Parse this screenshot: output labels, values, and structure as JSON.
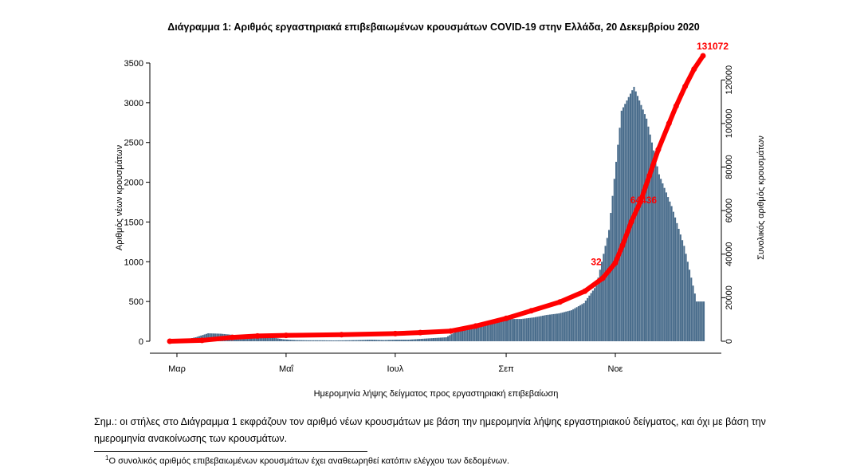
{
  "chart_data": {
    "type": "bar",
    "title": "Διάγραμμα 1: Αριθμός εργαστηριακά επιβεβαιωμένων κρουσμάτων COVID-19 στην Ελλάδα, 20 Δεκεμβρίου 2020",
    "xlabel": "Ημερομηνία λήψης δείγματος προς εργαστηριακή επιβεβαίωση",
    "ylabel": "Αριθμός νέων κρουσμάτων",
    "y2label": "Συνολικός αριθμός κρουσμάτων",
    "x_tick_labels": [
      "Μαρ",
      "Μαΐ",
      "Ιουλ",
      "Σεπ",
      "Νοε"
    ],
    "x_tick_dates": [
      "2020-03-01",
      "2020-05-01",
      "2020-07-01",
      "2020-09-01",
      "2020-11-01"
    ],
    "x_range": [
      "2020-02-26",
      "2020-12-20"
    ],
    "ylim": [
      0,
      3500
    ],
    "yticks": [
      0,
      500,
      1000,
      1500,
      2000,
      2500,
      3000,
      3500
    ],
    "y2lim": [
      0,
      120000
    ],
    "y2ticks": [
      0,
      20000,
      40000,
      60000,
      80000,
      100000,
      120000
    ],
    "bar_color": "#4a6d8c",
    "line_color": "#ff0000",
    "series": [
      {
        "name": "Αριθμός νέων κρουσμάτων",
        "kind": "bar",
        "x_weekly": [
          "2020-02-26",
          "2020-03-04",
          "2020-03-11",
          "2020-03-18",
          "2020-03-25",
          "2020-04-01",
          "2020-04-08",
          "2020-04-15",
          "2020-04-22",
          "2020-04-29",
          "2020-05-06",
          "2020-05-13",
          "2020-05-20",
          "2020-05-27",
          "2020-06-03",
          "2020-06-10",
          "2020-06-17",
          "2020-06-24",
          "2020-07-01",
          "2020-07-08",
          "2020-07-15",
          "2020-07-22",
          "2020-07-29",
          "2020-08-05",
          "2020-08-12",
          "2020-08-19",
          "2020-08-26",
          "2020-09-02",
          "2020-09-09",
          "2020-09-16",
          "2020-09-23",
          "2020-09-30",
          "2020-10-07",
          "2020-10-14",
          "2020-10-21",
          "2020-10-28",
          "2020-11-04",
          "2020-11-11",
          "2020-11-18",
          "2020-11-25",
          "2020-12-02",
          "2020-12-09",
          "2020-12-16"
        ],
        "values": [
          2,
          15,
          50,
          100,
          95,
          80,
          70,
          60,
          50,
          25,
          15,
          12,
          12,
          10,
          12,
          15,
          20,
          15,
          20,
          20,
          30,
          40,
          50,
          140,
          200,
          220,
          250,
          280,
          280,
          300,
          330,
          350,
          390,
          480,
          700,
          1400,
          2900,
          3200,
          2800,
          2100,
          1700,
          1200,
          500
        ]
      },
      {
        "name": "Συνολικός αριθμός κρουσμάτων",
        "kind": "line",
        "x": [
          "2020-02-26",
          "2020-03-15",
          "2020-04-01",
          "2020-04-15",
          "2020-05-01",
          "2020-06-01",
          "2020-07-01",
          "2020-07-15",
          "2020-08-01",
          "2020-08-15",
          "2020-09-01",
          "2020-09-15",
          "2020-10-01",
          "2020-10-15",
          "2020-10-25",
          "2020-11-01",
          "2020-11-05",
          "2020-11-10",
          "2020-11-15",
          "2020-11-20",
          "2020-11-25",
          "2020-12-01",
          "2020-12-05",
          "2020-12-10",
          "2020-12-15",
          "2020-12-20"
        ],
        "values": [
          0,
          400,
          1800,
          2400,
          2700,
          3000,
          3500,
          4000,
          4700,
          7000,
          10500,
          14000,
          18000,
          23000,
          29000,
          36000,
          44000,
          55000,
          64000,
          76000,
          88000,
          100000,
          108000,
          117000,
          125000,
          131072
        ]
      }
    ],
    "annotations": [
      {
        "text": "131072",
        "series": "Συνολικός αριθμός κρουσμάτων",
        "x": "2020-12-20",
        "y": 131072
      },
      {
        "text": "64436",
        "series": "Συνολικός αριθμός κρουσμάτων",
        "x": "2020-11-15",
        "y": 64436
      },
      {
        "text": "32",
        "series": "Συνολικός αριθμός κρουσμάτων",
        "x": "2020-11-01",
        "y": 36000
      }
    ]
  },
  "note": "Σημ.: οι στήλες στο Διάγραμμα 1 εκφράζουν τον αριθμό νέων κρουσμάτων με βάση την ημερομηνία λήψης εργαστηριακού δείγματος, και όχι με βάση την ημερομηνία ανακοίνωσης των κρουσμάτων.",
  "footnote_marker": "1",
  "footnote": "Ο συνολικός αριθμός επιβεβαιωμένων κρουσμάτων έχει αναθεωρηθεί κατόπιν ελέγχου των δεδομένων."
}
